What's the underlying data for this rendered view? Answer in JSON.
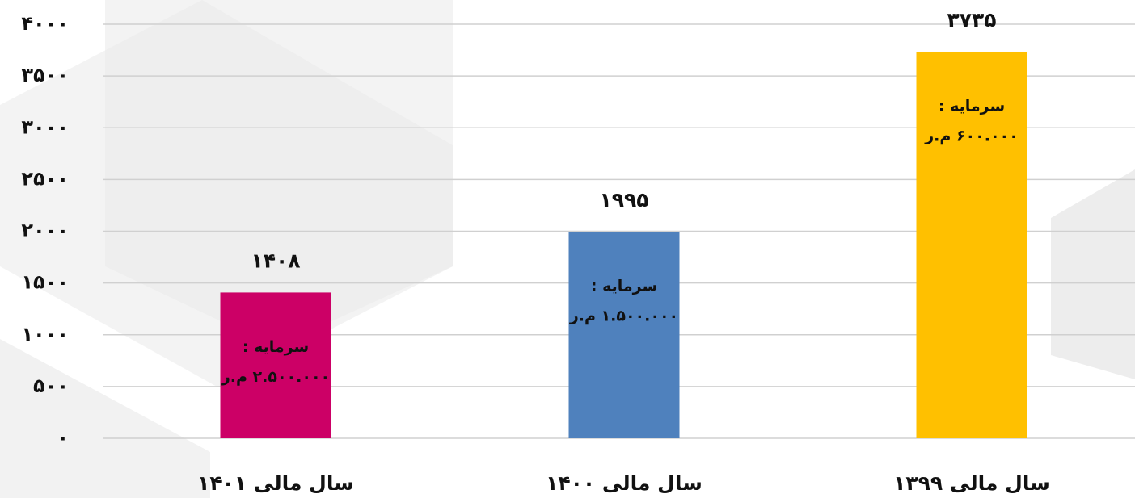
{
  "chart_data": {
    "type": "bar",
    "categories": [
      "سال مالی ۱۴۰۱",
      "سال مالی ۱۴۰۰",
      "سال مالی ۱۳۹۹"
    ],
    "values": [
      1408,
      1995,
      3735
    ],
    "value_labels": [
      "۱۴۰۸",
      "۱۹۹۵",
      "۳۷۳۵"
    ],
    "colors": [
      "#cc0066",
      "#4f81bd",
      "#ffc000"
    ],
    "bar_notes": [
      [
        "سرمایه :",
        "۲.۵۰۰.۰۰۰ م.ر"
      ],
      [
        "سرمایه :",
        "۱.۵۰۰.۰۰۰ م.ر"
      ],
      [
        "سرمایه :",
        "۶۰۰.۰۰۰ م.ر"
      ]
    ],
    "ylim": [
      0,
      4000
    ],
    "yticks": [
      {
        "value": 0,
        "label": "۰"
      },
      {
        "value": 500,
        "label": "۵۰۰"
      },
      {
        "value": 1000,
        "label": "۱۰۰۰"
      },
      {
        "value": 1500,
        "label": "۱۵۰۰"
      },
      {
        "value": 2000,
        "label": "۲۰۰۰"
      },
      {
        "value": 2500,
        "label": "۲۵۰۰"
      },
      {
        "value": 3000,
        "label": "۳۰۰۰"
      },
      {
        "value": 3500,
        "label": "۳۵۰۰"
      },
      {
        "value": 4000,
        "label": "۴۰۰۰"
      }
    ],
    "grid": true
  }
}
